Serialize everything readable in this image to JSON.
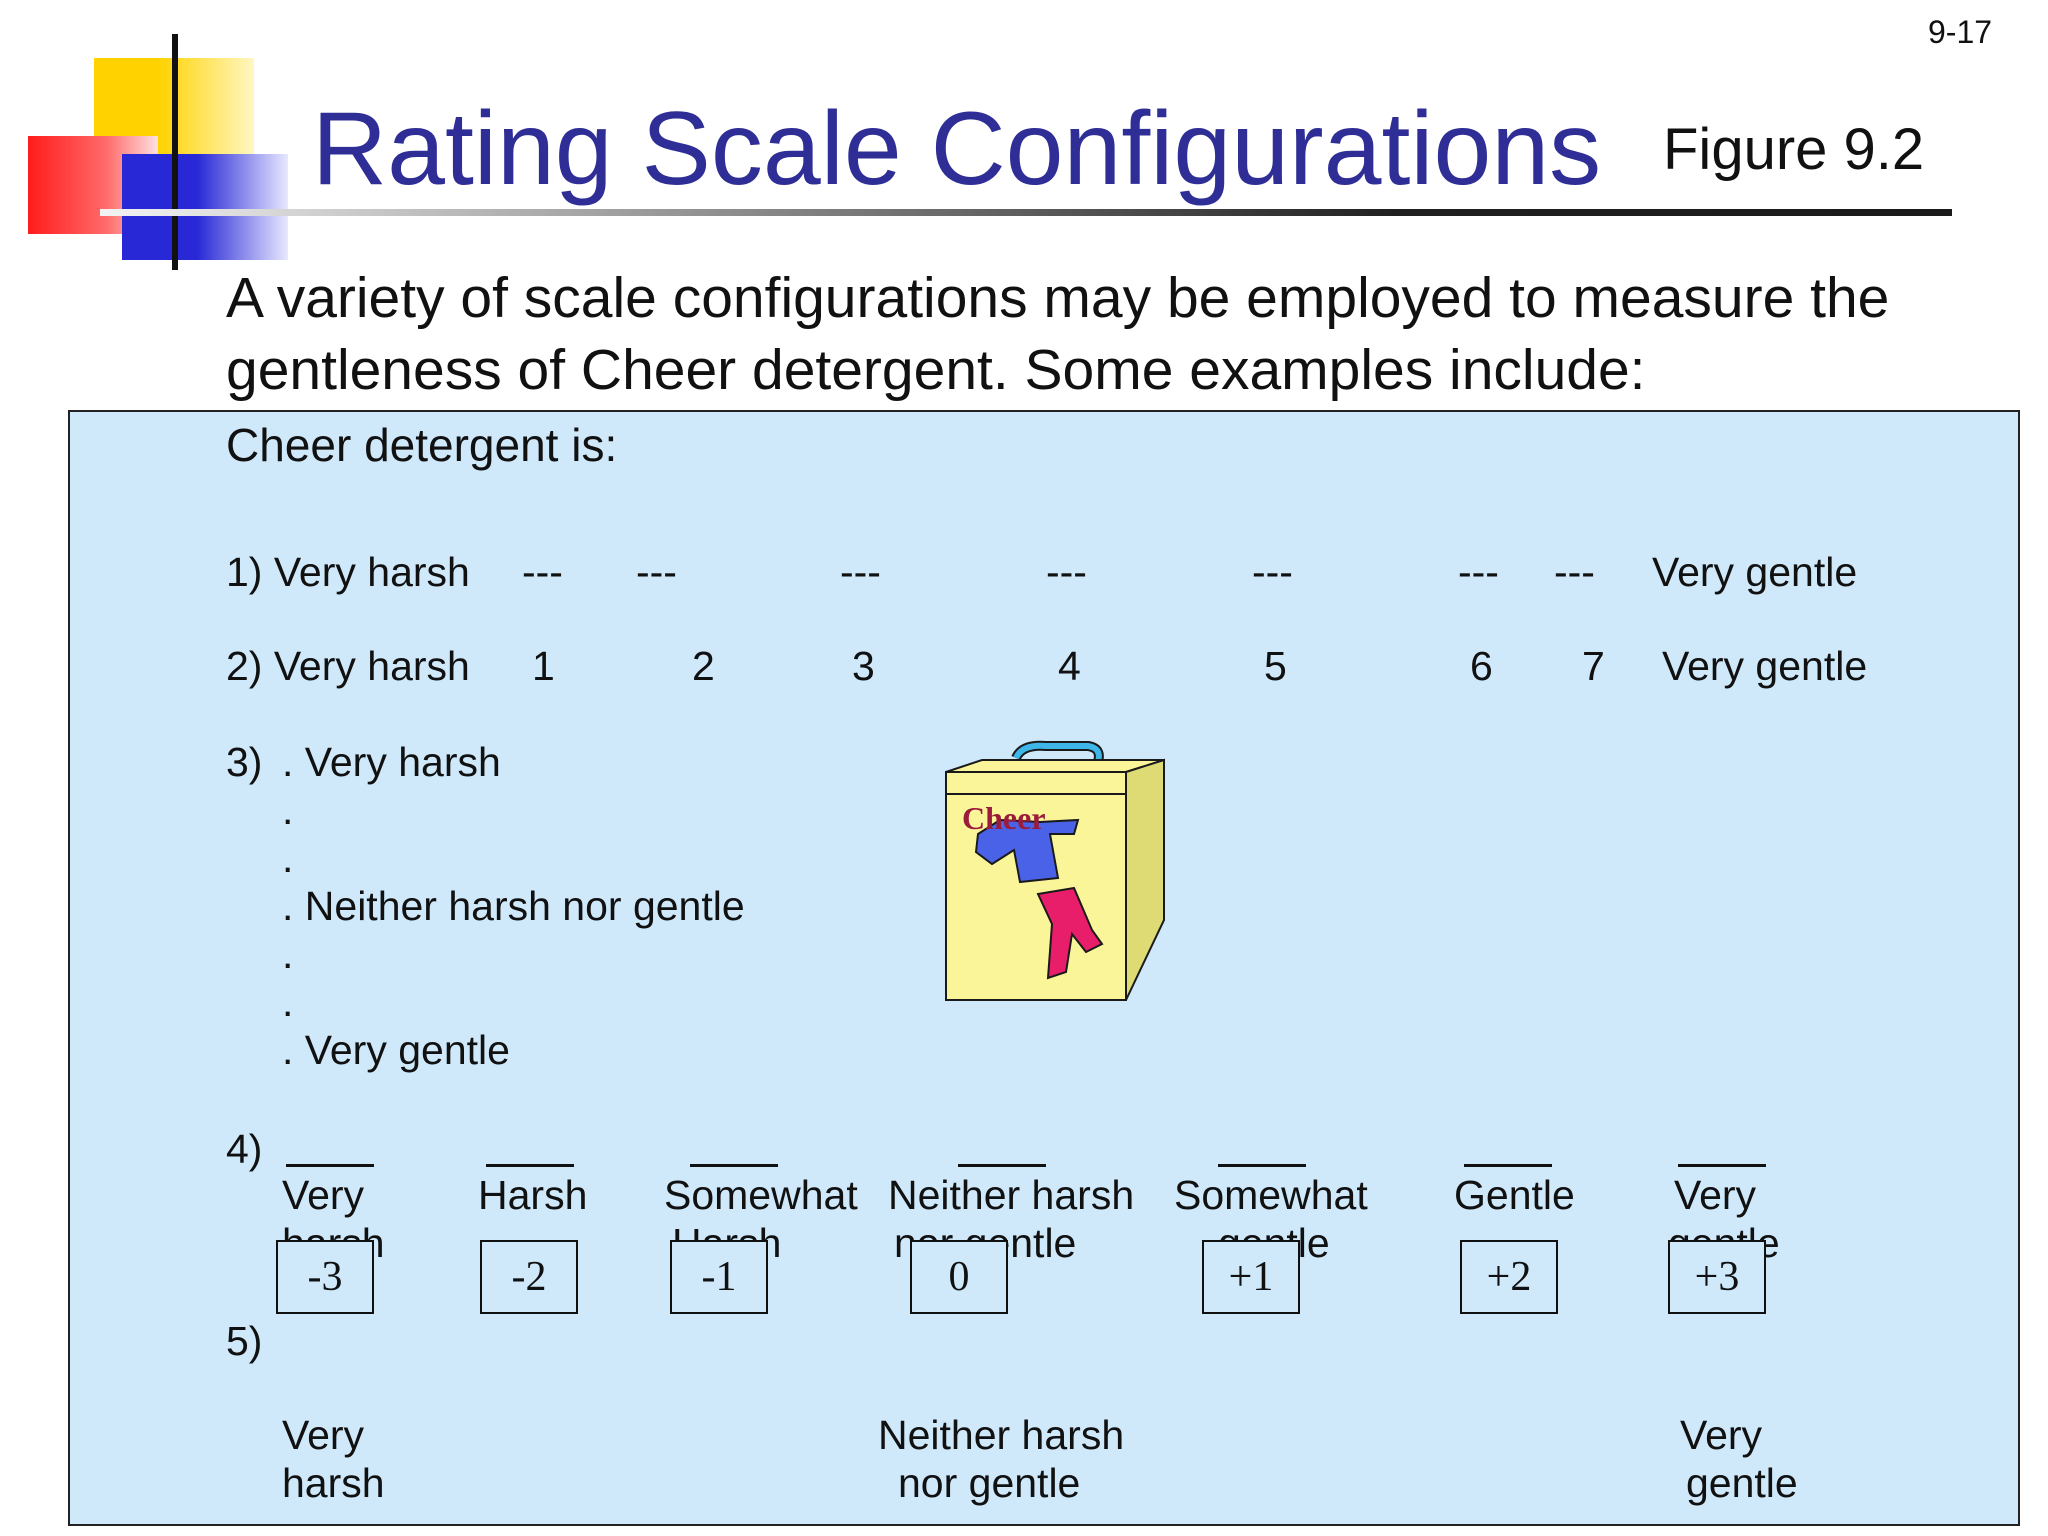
{
  "slide": {
    "page_number": "9-17",
    "title": "Rating Scale Configurations",
    "figure_label": "Figure 9.2",
    "intro": [
      "A variety of scale configurations may be employed to measure the",
      "gentleness of Cheer detergent. Some examples include:"
    ]
  },
  "panel": {
    "heading": "Cheer detergent is:",
    "scale1": {
      "label": "1) Very harsh",
      "dashes": [
        "---",
        "---",
        "---",
        "---",
        "---",
        "---",
        "---"
      ],
      "end_label": "Very gentle"
    },
    "scale2": {
      "label": "2) Very harsh",
      "numbers": [
        "1",
        "2",
        "3",
        "4",
        "5",
        "6",
        "7"
      ],
      "end_label": "Very gentle"
    },
    "scale3": {
      "label": "3)",
      "top": ". Very harsh",
      "dot": ".",
      "middle": ".  Neither harsh nor gentle",
      "bottom": ".  Very gentle"
    },
    "scale4": {
      "label": "4)",
      "options": [
        "Very",
        "Harsh",
        "Somewhat",
        "Neither harsh",
        "Somewhat",
        "Gentle",
        "Very"
      ],
      "second_line": [
        "harsh",
        "Harsh",
        "nor gentle",
        "gentle",
        "gentle"
      ]
    },
    "scale5": {
      "label": "5)",
      "boxes": [
        "-3",
        "-2",
        "-1",
        "0",
        "+1",
        "+2",
        "+3"
      ],
      "left_anchor": [
        "Very",
        "harsh"
      ],
      "middle_anchor": [
        "Neither harsh",
        "nor gentle"
      ],
      "right_anchor": [
        "Very",
        "gentle"
      ]
    },
    "box_brand": "Cheer"
  },
  "colors": {
    "title": "#2e2e96",
    "panel_bg": "#cfe9fb",
    "box_yellow": "#fbf59a",
    "brand_text": "#9b1b3a"
  }
}
